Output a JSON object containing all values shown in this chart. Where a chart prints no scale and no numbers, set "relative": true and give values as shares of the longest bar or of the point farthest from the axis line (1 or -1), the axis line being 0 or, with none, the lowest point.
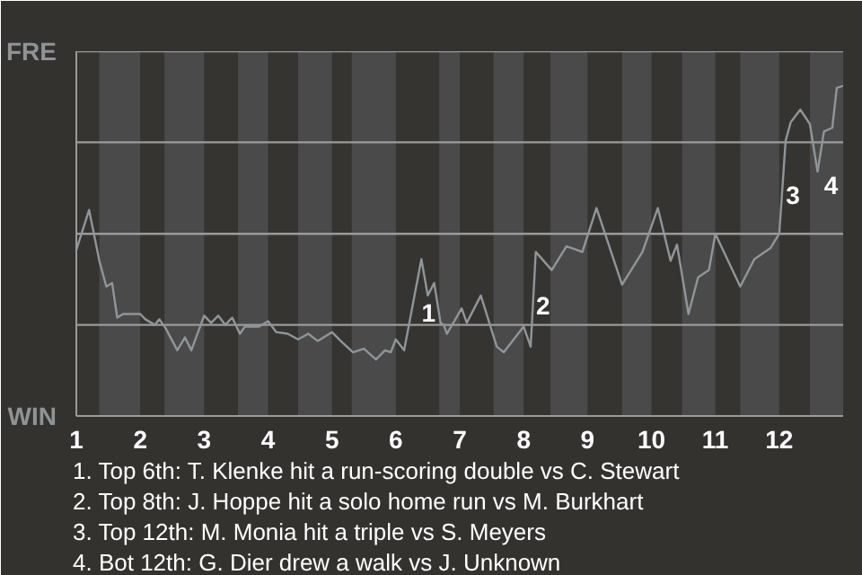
{
  "chart_data": {
    "type": "line",
    "color": "#8f969a",
    "relative": true,
    "x": [
      1.0,
      1.2,
      1.36,
      1.47,
      1.56,
      1.64,
      1.73,
      2.0,
      2.08,
      2.23,
      2.3,
      2.4,
      2.58,
      2.7,
      2.8,
      3.0,
      3.11,
      3.22,
      3.33,
      3.44,
      3.56,
      3.64,
      3.86,
      4.0,
      4.13,
      4.31,
      4.47,
      4.63,
      4.78,
      5.0,
      5.14,
      5.33,
      5.5,
      5.69,
      5.83,
      5.92,
      6.0,
      6.13,
      6.4,
      6.5,
      6.6,
      6.7,
      6.75,
      6.8,
      7.03,
      7.11,
      7.33,
      7.58,
      7.69,
      8.0,
      8.11,
      8.19,
      8.44,
      8.67,
      8.92,
      9.14,
      9.54,
      9.86,
      10.1,
      10.3,
      10.4,
      10.58,
      10.73,
      10.9,
      11.0,
      11.39,
      11.61,
      11.86,
      12.0,
      12.1,
      12.18,
      12.33,
      12.48,
      12.6,
      12.7,
      12.83,
      12.9,
      13.0
    ],
    "values": [
      0.503,
      0.624,
      0.47,
      0.392,
      0.403,
      0.298,
      0.309,
      0.309,
      0.293,
      0.276,
      0.293,
      0.265,
      0.199,
      0.238,
      0.199,
      0.304,
      0.282,
      0.304,
      0.276,
      0.298,
      0.249,
      0.271,
      0.271,
      0.287,
      0.254,
      0.249,
      0.232,
      0.249,
      0.227,
      0.254,
      0.227,
      0.193,
      0.204,
      0.171,
      0.199,
      0.193,
      0.232,
      0.199,
      0.475,
      0.365,
      0.403,
      0.282,
      0.276,
      0.249,
      0.326,
      0.282,
      0.365,
      0.21,
      0.193,
      0.271,
      0.21,
      0.497,
      0.442,
      0.514,
      0.497,
      0.63,
      0.398,
      0.497,
      0.63,
      0.47,
      0.519,
      0.309,
      0.42,
      0.442,
      0.552,
      0.392,
      0.475,
      0.508,
      0.552,
      0.834,
      0.89,
      0.928,
      0.884,
      0.74,
      0.862,
      0.873,
      0.994,
      1
    ],
    "xlim": [
      1,
      13
    ],
    "xticks": [
      1,
      2,
      3,
      4,
      5,
      6,
      7,
      8,
      9,
      10,
      11,
      12
    ],
    "marker": "none",
    "line_style": "solid",
    "ref_lines": [
      {
        "axis": "y",
        "value": 0.276,
        "color": "#9a9a9a"
      },
      {
        "axis": "y",
        "value": 0.552,
        "color": "#9a9a9a"
      },
      {
        "axis": "y",
        "value": 0.829,
        "color": "#9a9a9a"
      },
      {
        "axis": "y",
        "value": 1.105,
        "color": "#9a9a9a"
      }
    ],
    "bands": [
      {
        "axis": "x",
        "from": 1.36,
        "to": 2.0,
        "color": "#4a4a4a"
      },
      {
        "axis": "x",
        "from": 2.38,
        "to": 3.0,
        "color": "#4a4a4a"
      },
      {
        "axis": "x",
        "from": 3.53,
        "to": 4.0,
        "color": "#4a4a4a"
      },
      {
        "axis": "x",
        "from": 4.47,
        "to": 5.0,
        "color": "#4a4a4a"
      },
      {
        "axis": "x",
        "from": 5.31,
        "to": 6.0,
        "color": "#4a4a4a"
      },
      {
        "axis": "x",
        "from": 6.68,
        "to": 7.0,
        "color": "#4a4a4a"
      },
      {
        "axis": "x",
        "from": 7.53,
        "to": 8.0,
        "color": "#4a4a4a"
      },
      {
        "axis": "x",
        "from": 8.42,
        "to": 9.0,
        "color": "#4a4a4a"
      },
      {
        "axis": "x",
        "from": 9.54,
        "to": 10.0,
        "color": "#4a4a4a"
      },
      {
        "axis": "x",
        "from": 10.48,
        "to": 11.0,
        "color": "#4a4a4a"
      },
      {
        "axis": "x",
        "from": 11.39,
        "to": 12.0,
        "color": "#4a4a4a"
      },
      {
        "axis": "x",
        "from": 12.48,
        "to": 13.0,
        "color": "#4a4a4a"
      }
    ],
    "annotations": [
      "FRE",
      "WIN",
      {
        "text": "1",
        "x": 6.4,
        "y": 0.475
      },
      {
        "text": "2",
        "x": 8.19,
        "y": 0.497
      },
      {
        "text": "3",
        "x": 12.1,
        "y": 0.834
      },
      {
        "text": "4",
        "x": 12.7,
        "y": 0.862
      },
      "1. Top 6th: T. Klenke hit a run-scoring double vs C. Stewart",
      "2. Top 8th: J. Hoppe hit a solo home run vs M. Burkhart",
      "3. Top 12th: M. Monia hit a triple vs S. Meyers",
      "4. Bot 12th: G. Dier drew a walk vs J. Unknown"
    ]
  }
}
